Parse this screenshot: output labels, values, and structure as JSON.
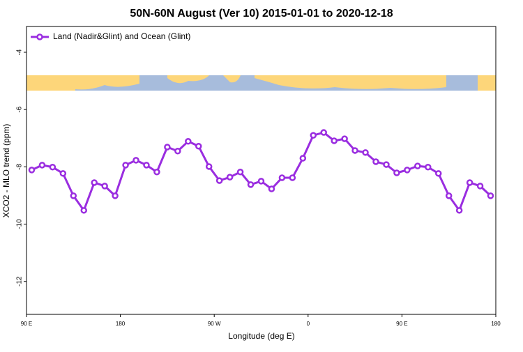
{
  "chart_data": {
    "type": "line",
    "title": "50N-60N August (Ver 10)   2015-01-01 to 2020-12-18",
    "x_label": "Longitude (deg E)",
    "y_label": "XCO2 - MLO trend (ppm)",
    "x": [
      95,
      105,
      115,
      125,
      135,
      145,
      155,
      165,
      175,
      185,
      195,
      205,
      215,
      225,
      235,
      245,
      255,
      265,
      275,
      285,
      295,
      305,
      315,
      325,
      335,
      345,
      355,
      365,
      375,
      385,
      395,
      405,
      415,
      425,
      435,
      445,
      455,
      465,
      475,
      485,
      495,
      505,
      515,
      525,
      535
    ],
    "series": [
      {
        "name": "Land (Nadir&Glint) and Ocean (Glint)",
        "color": "#9a2de0",
        "values": [
          -8.11,
          -7.94,
          -8.01,
          -8.23,
          -9.01,
          -9.52,
          -8.55,
          -8.67,
          -9.01,
          -7.94,
          -7.77,
          -7.94,
          -8.18,
          -7.31,
          -7.45,
          -7.11,
          -7.28,
          -7.99,
          -8.48,
          -8.36,
          -8.18,
          -8.62,
          -8.5,
          -8.77,
          -8.38,
          -8.38,
          -7.7,
          -6.9,
          -6.8,
          -7.09,
          -7.02,
          -7.43,
          -7.5,
          -7.82,
          -7.92,
          -8.21,
          -8.11,
          -7.97,
          -8.01,
          -8.23,
          -9.01,
          -9.52,
          -8.55,
          -8.67,
          -9.01
        ]
      }
    ],
    "xlim": [
      90,
      540
    ],
    "xticks": [
      {
        "value": 90,
        "label": "90 E"
      },
      180,
      {
        "value": 270,
        "label": "90 W"
      },
      {
        "value": 360,
        "label": "0"
      },
      {
        "value": 450,
        "label": "90 E"
      },
      {
        "value": 540,
        "label": "180"
      }
    ],
    "ylim": [
      -13.15,
      -3.1
    ],
    "yticks": [
      -4,
      -6,
      -8,
      -10,
      -12
    ],
    "legend": "top-left"
  }
}
